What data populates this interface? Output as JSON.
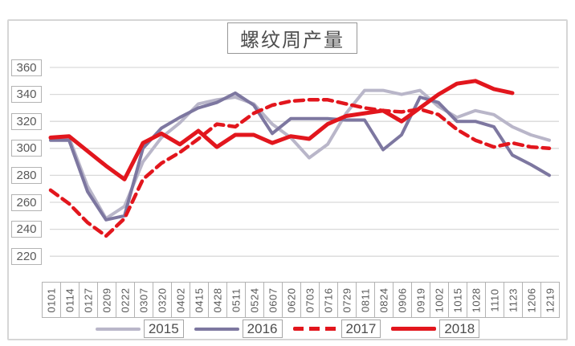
{
  "chart": {
    "title": "螺纹周产量",
    "y_axis_labels": [
      "360",
      "340",
      "320",
      "300",
      "280",
      "260",
      "240",
      "220"
    ],
    "legend": [
      {
        "label": "2015",
        "color": "#b9b6c9",
        "dash": false,
        "width": 4
      },
      {
        "label": "2016",
        "color": "#7d77a0",
        "dash": false,
        "width": 4
      },
      {
        "label": "2017",
        "color": "#e2161d",
        "dash": true,
        "width": 4.5
      },
      {
        "label": "2018",
        "color": "#e2161d",
        "dash": false,
        "width": 5
      }
    ]
  },
  "chart_data": {
    "type": "line",
    "title": "螺纹周产量",
    "xlabel": "",
    "ylabel": "",
    "ylim": [
      200,
      360
    ],
    "y_ticks": [
      220,
      240,
      260,
      280,
      300,
      320,
      340,
      360
    ],
    "grid": true,
    "legend_position": "bottom",
    "categories": [
      "0101",
      "0114",
      "0127",
      "0209",
      "0222",
      "0307",
      "0320",
      "0402",
      "0415",
      "0428",
      "0511",
      "0524",
      "0607",
      "0620",
      "0703",
      "0716",
      "0729",
      "0811",
      "0824",
      "0906",
      "0919",
      "1002",
      "1015",
      "1028",
      "1110",
      "1123",
      "1206",
      "1219"
    ],
    "series": [
      {
        "name": "2015",
        "color": "#b9b6c9",
        "dash": false,
        "width": 4,
        "values": [
          307,
          308,
          272,
          248,
          257,
          290,
          308,
          319,
          333,
          336,
          338,
          333,
          318,
          308,
          293,
          303,
          326,
          343,
          343,
          340,
          343,
          331,
          323,
          328,
          325,
          316,
          310,
          306
        ]
      },
      {
        "name": "2016",
        "color": "#7d77a0",
        "dash": false,
        "width": 4,
        "values": [
          306,
          306,
          268,
          247,
          250,
          300,
          315,
          323,
          330,
          334,
          341,
          332,
          311,
          322,
          322,
          322,
          321,
          321,
          299,
          310,
          338,
          334,
          320,
          320,
          316,
          295,
          288,
          280
        ]
      },
      {
        "name": "2017",
        "color": "#e2161d",
        "dash": true,
        "width": 4.5,
        "values": [
          269,
          259,
          245,
          235,
          248,
          277,
          289,
          297,
          307,
          318,
          316,
          326,
          332,
          335,
          336,
          336,
          333,
          330,
          328,
          327,
          329,
          325,
          314,
          306,
          301,
          304,
          301,
          300
        ]
      },
      {
        "name": "2018",
        "color": "#e2161d",
        "dash": false,
        "width": 5,
        "values": [
          308,
          309,
          298,
          287,
          277,
          304,
          311,
          303,
          313,
          301,
          310,
          310,
          304,
          309,
          307,
          318,
          324,
          326,
          328,
          320,
          330,
          340,
          348,
          350,
          344,
          341,
          null,
          null
        ]
      }
    ]
  }
}
